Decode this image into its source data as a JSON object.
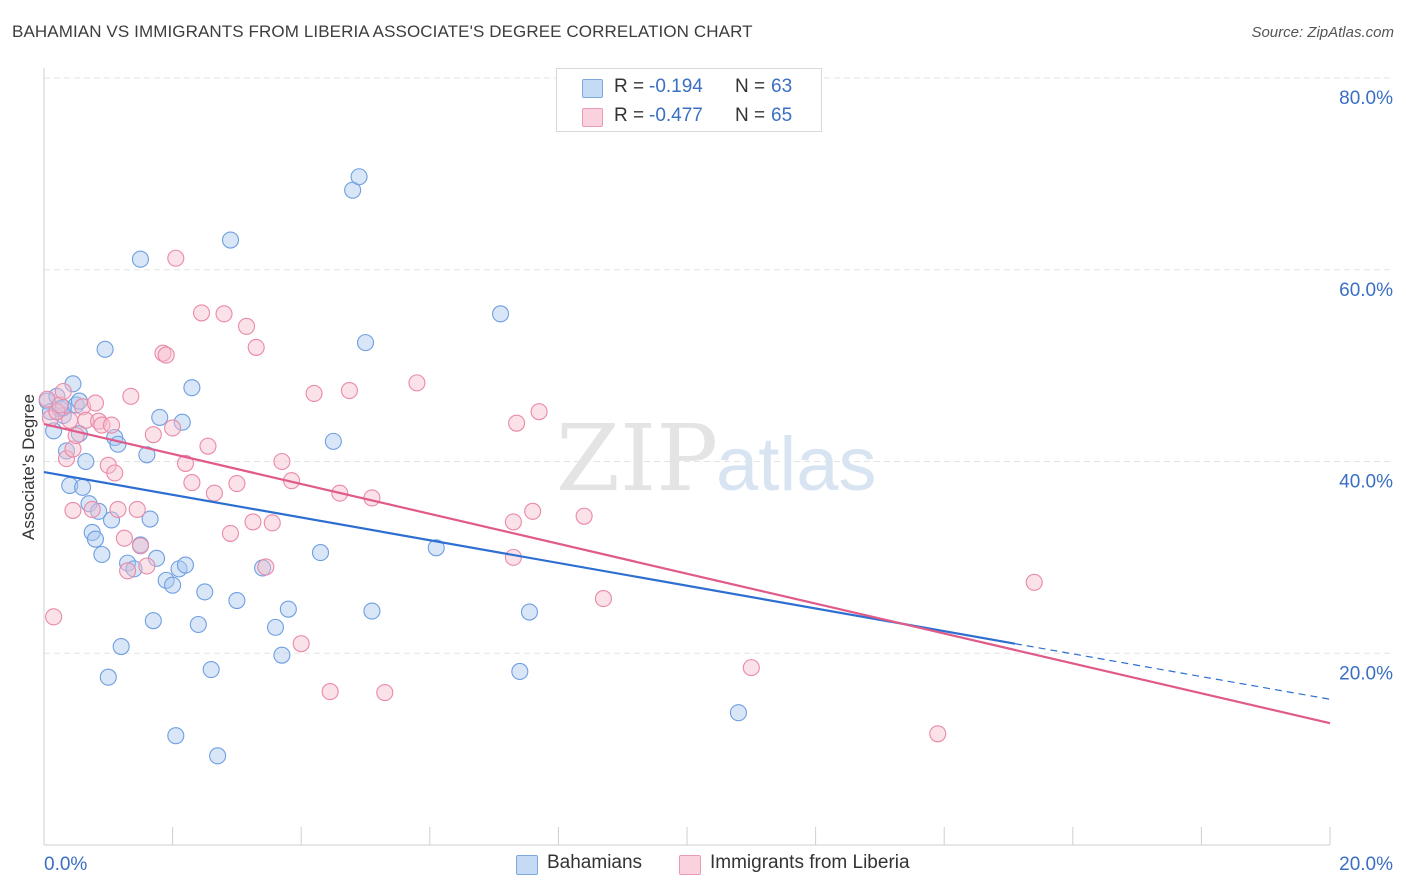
{
  "title": "BAHAMIAN VS IMMIGRANTS FROM LIBERIA ASSOCIATE'S DEGREE CORRELATION CHART",
  "source": "Source: ZipAtlas.com",
  "watermark": {
    "zip": "ZIP",
    "atlas": "atlas"
  },
  "legend": {
    "rows": [
      {
        "r_label": "R =",
        "r_value": "-0.194",
        "n_label": "N =",
        "n_value": "63",
        "color": "#a9c8f0"
      },
      {
        "r_label": "R =",
        "r_value": "-0.477",
        "n_label": "N =",
        "n_value": "65",
        "color": "#f6bccd"
      }
    ]
  },
  "bottom_legend": [
    {
      "label": "Bahamians",
      "color": "#a9c8f0"
    },
    {
      "label": "Immigrants from Liberia",
      "color": "#f6bccd"
    }
  ],
  "chart_data": {
    "type": "scatter",
    "title": "BAHAMIAN VS IMMIGRANTS FROM LIBERIA ASSOCIATE'S DEGREE CORRELATION CHART",
    "xlabel": "",
    "ylabel": "Associate's Degree",
    "xlim": [
      0,
      20
    ],
    "ylim": [
      0,
      80
    ],
    "x_tick_labels": [
      "0.0%",
      "20.0%"
    ],
    "y_ticks": [
      20,
      40,
      60,
      80
    ],
    "y_tick_labels": [
      "20.0%",
      "40.0%",
      "60.0%",
      "80.0%"
    ],
    "grid": true,
    "series": [
      {
        "name": "Bahamians",
        "color": "#6f9fe0",
        "fill": "#a9c8f0",
        "line_color": "#2d6fd0",
        "trend": {
          "x0": 0,
          "y0": 38.9,
          "x1": 15.1,
          "y1": 21.0,
          "dash_x1": 20,
          "dash_y1": 15.2
        },
        "x": [
          0.05,
          0.1,
          0.15,
          0.2,
          0.25,
          0.3,
          0.35,
          0.4,
          0.45,
          0.5,
          0.55,
          0.6,
          0.65,
          0.7,
          0.75,
          0.8,
          0.85,
          0.9,
          0.95,
          1.0,
          1.05,
          1.1,
          1.15,
          1.2,
          1.3,
          1.4,
          1.5,
          1.5,
          1.6,
          1.65,
          1.7,
          1.75,
          1.8,
          1.9,
          2.0,
          2.05,
          2.1,
          2.15,
          2.2,
          2.3,
          2.4,
          2.5,
          2.6,
          2.7,
          2.9,
          3.0,
          3.4,
          3.6,
          3.7,
          3.8,
          4.3,
          4.5,
          4.8,
          4.9,
          5.0,
          5.1,
          6.1,
          7.1,
          7.4,
          7.55,
          10.8,
          0.3,
          0.55
        ],
        "y": [
          46.3,
          45.2,
          43.2,
          46.8,
          45.5,
          44.8,
          41.1,
          37.5,
          48.1,
          45.9,
          42.9,
          37.3,
          40.0,
          35.6,
          32.6,
          31.9,
          34.8,
          30.3,
          51.7,
          17.5,
          33.9,
          42.5,
          41.8,
          20.7,
          29.4,
          28.8,
          31.3,
          61.1,
          40.7,
          34.0,
          23.4,
          29.9,
          44.6,
          27.6,
          27.1,
          11.4,
          28.8,
          44.1,
          29.2,
          47.7,
          23.0,
          26.4,
          18.3,
          9.3,
          63.1,
          25.5,
          28.9,
          22.7,
          19.8,
          24.6,
          30.5,
          42.1,
          68.3,
          69.7,
          52.4,
          24.4,
          31.0,
          55.4,
          18.1,
          24.3,
          13.8,
          45.6,
          46.3
        ]
      },
      {
        "name": "Immigrants from Liberia",
        "color": "#e98aa8",
        "fill": "#f6bccd",
        "line_color": "#e05a8a",
        "trend": {
          "x0": 0,
          "y0": 43.9,
          "x1": 20,
          "y1": 12.7
        },
        "x": [
          0.05,
          0.1,
          0.2,
          0.25,
          0.3,
          0.35,
          0.4,
          0.45,
          0.5,
          0.6,
          0.65,
          0.75,
          0.8,
          0.85,
          0.9,
          1.0,
          1.05,
          1.1,
          1.15,
          1.25,
          1.3,
          1.35,
          1.45,
          1.5,
          1.6,
          1.7,
          1.85,
          1.9,
          2.0,
          2.05,
          2.2,
          2.3,
          2.45,
          2.55,
          2.65,
          2.8,
          2.9,
          3.0,
          3.15,
          3.25,
          3.3,
          3.45,
          3.55,
          3.7,
          3.85,
          4.0,
          4.2,
          4.45,
          4.6,
          4.75,
          5.1,
          5.3,
          5.8,
          7.3,
          7.3,
          7.35,
          7.6,
          7.7,
          8.4,
          8.7,
          11.0,
          13.9,
          15.4,
          0.15,
          0.45
        ],
        "y": [
          46.5,
          44.5,
          45.2,
          45.9,
          47.3,
          40.3,
          44.3,
          41.3,
          42.7,
          45.7,
          44.3,
          35.0,
          46.1,
          44.2,
          43.8,
          39.6,
          43.8,
          38.8,
          35.0,
          32.0,
          28.6,
          46.8,
          35.0,
          31.2,
          29.1,
          42.8,
          51.3,
          51.1,
          43.5,
          61.2,
          39.8,
          37.8,
          55.5,
          41.6,
          36.7,
          55.4,
          32.5,
          37.7,
          54.1,
          33.7,
          51.9,
          29.0,
          33.6,
          40.0,
          38.0,
          21.0,
          47.1,
          16.0,
          36.7,
          47.4,
          36.2,
          15.9,
          48.2,
          33.7,
          30.0,
          44.0,
          34.8,
          45.2,
          34.3,
          25.7,
          18.5,
          11.6,
          27.4,
          23.8,
          34.9
        ]
      }
    ]
  }
}
